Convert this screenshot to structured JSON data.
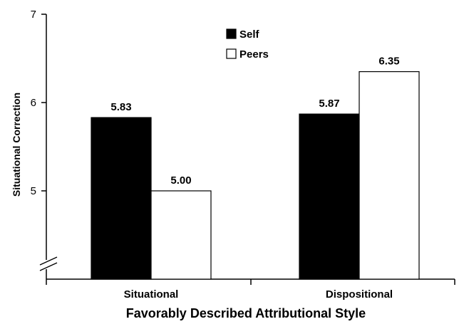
{
  "chart_data": {
    "type": "bar",
    "title": "",
    "xlabel": "Favorably Described Attributional Style",
    "ylabel": "Situational Correction",
    "categories": [
      "Situational",
      "Dispositional"
    ],
    "series": [
      {
        "name": "Self",
        "values": [
          5.83,
          5.87
        ],
        "labels": [
          "5.83",
          "5.87"
        ],
        "color": "#000000"
      },
      {
        "name": "Peers",
        "values": [
          5.0,
          6.35
        ],
        "labels": [
          "5.00",
          "6.35"
        ],
        "color": "#ffffff"
      }
    ],
    "yticks": [
      5,
      6,
      7
    ],
    "ylim": [
      4,
      7
    ],
    "axis_break": true,
    "legend_position": "top-center",
    "grid": false
  }
}
